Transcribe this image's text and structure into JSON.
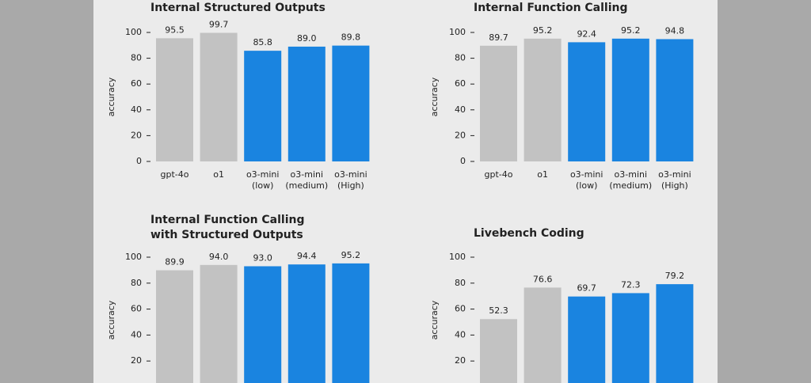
{
  "chart_data": [
    {
      "type": "bar",
      "title": [
        "Internal Structured Outputs"
      ],
      "ylabel": "accuracy",
      "categories": [
        [
          "gpt-4o"
        ],
        [
          "o1"
        ],
        [
          "o3-mini",
          "(low)"
        ],
        [
          "o3-mini",
          "(medium)"
        ],
        [
          "o3-mini",
          "(High)"
        ]
      ],
      "values": [
        95.5,
        99.7,
        85.8,
        89.0,
        89.8
      ],
      "value_labels": [
        "95.5",
        "99.7",
        "85.8",
        "89.0",
        "89.8"
      ],
      "colors": [
        "#c2c2c2",
        "#c2c2c2",
        "#1a84e0",
        "#1a84e0",
        "#1a84e0"
      ],
      "ylim": [
        0,
        100
      ],
      "yticks": [
        0,
        20,
        40,
        60,
        80,
        100
      ]
    },
    {
      "type": "bar",
      "title": [
        "Internal Function Calling"
      ],
      "ylabel": "accuracy",
      "categories": [
        [
          "gpt-4o"
        ],
        [
          "o1"
        ],
        [
          "o3-mini",
          "(low)"
        ],
        [
          "o3-mini",
          "(medium)"
        ],
        [
          "o3-mini",
          "(High)"
        ]
      ],
      "values": [
        89.7,
        95.2,
        92.4,
        95.2,
        94.8
      ],
      "value_labels": [
        "89.7",
        "95.2",
        "92.4",
        "95.2",
        "94.8"
      ],
      "colors": [
        "#c2c2c2",
        "#c2c2c2",
        "#1a84e0",
        "#1a84e0",
        "#1a84e0"
      ],
      "ylim": [
        0,
        100
      ],
      "yticks": [
        0,
        20,
        40,
        60,
        80,
        100
      ]
    },
    {
      "type": "bar",
      "title": [
        "Internal Function Calling",
        "with Structured Outputs"
      ],
      "ylabel": "accuracy",
      "values": [
        89.9,
        94.0,
        93.0,
        94.4,
        95.2
      ],
      "value_labels": [
        "89.9",
        "94.0",
        "93.0",
        "94.4",
        "95.2"
      ],
      "colors": [
        "#c2c2c2",
        "#c2c2c2",
        "#1a84e0",
        "#1a84e0",
        "#1a84e0"
      ],
      "ylim": [
        0,
        100
      ],
      "yticks": [
        20,
        40,
        60,
        80,
        100
      ]
    },
    {
      "type": "bar",
      "title": [
        "Livebench Coding"
      ],
      "ylabel": "accuracy",
      "values": [
        52.3,
        76.6,
        69.7,
        72.3,
        79.2
      ],
      "value_labels": [
        "52.3",
        "76.6",
        "69.7",
        "72.3",
        "79.2"
      ],
      "colors": [
        "#c2c2c2",
        "#c2c2c2",
        "#1a84e0",
        "#1a84e0",
        "#1a84e0"
      ],
      "ylim": [
        0,
        100
      ],
      "yticks": [
        20,
        40,
        60,
        80,
        100
      ]
    }
  ]
}
